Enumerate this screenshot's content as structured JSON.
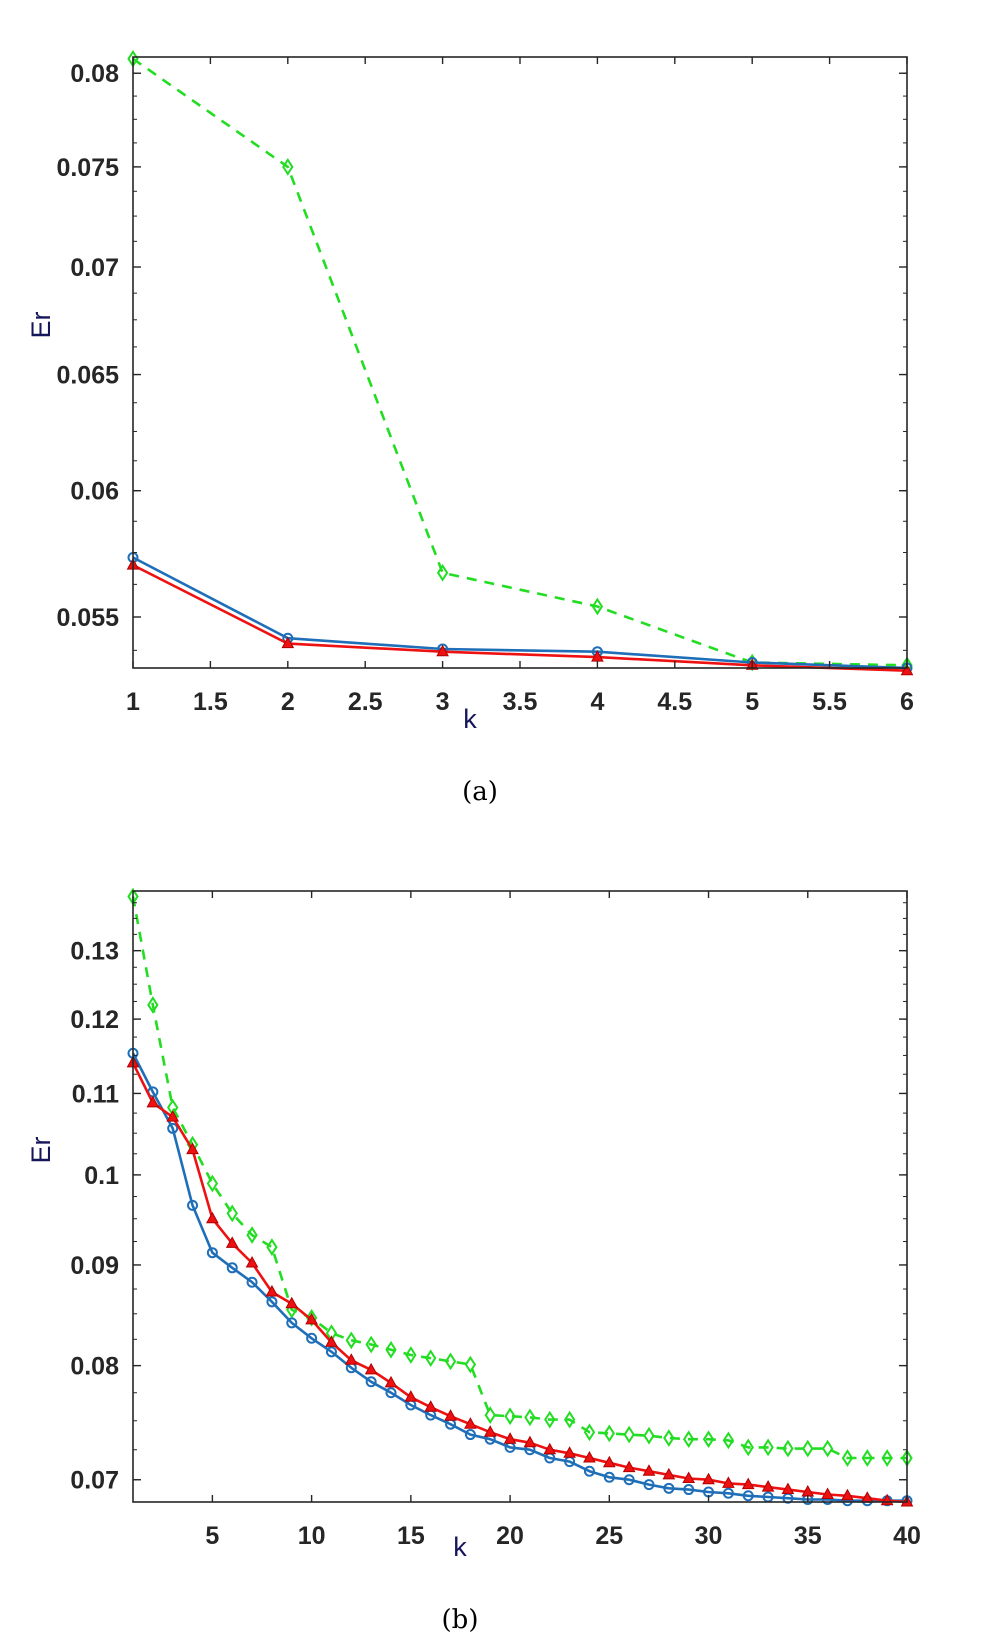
{
  "figure": {
    "panels": [
      {
        "caption": "(a)",
        "xlabel": "k",
        "ylabel": "Er"
      },
      {
        "caption": "(b)",
        "xlabel": "k",
        "ylabel": "Er"
      }
    ]
  },
  "chart_data": [
    {
      "type": "line",
      "title": "",
      "caption": "(a)",
      "xlabel": "k",
      "ylabel": "Er",
      "yscale": "log",
      "xlim": [
        1,
        6
      ],
      "ylim": [
        0.0531,
        0.0809
      ],
      "xticks": [
        1,
        1.5,
        2,
        2.5,
        3,
        3.5,
        4,
        4.5,
        5,
        5.5,
        6
      ],
      "xtick_labels": [
        "1",
        "1.5",
        "2",
        "2.5",
        "3",
        "3.5",
        "4",
        "4.5",
        "5",
        "5.5",
        "6"
      ],
      "yticks": [
        0.055,
        0.06,
        0.065,
        0.07,
        0.075,
        0.08
      ],
      "ytick_labels": [
        "0.055",
        "0.06",
        "0.065",
        "0.07",
        "0.075",
        "0.08"
      ],
      "grid": false,
      "legend": null,
      "x": [
        1,
        2,
        3,
        4,
        5,
        6
      ],
      "series": [
        {
          "name": "green-dashed-diamond",
          "color": "#22dd22",
          "line": "dashed",
          "marker": "diamond",
          "values": [
            0.0808,
            0.075,
            0.0567,
            0.0554,
            0.0533,
            0.0532
          ]
        },
        {
          "name": "blue-solid-circle",
          "color": "#1f6fb8",
          "line": "solid",
          "marker": "circle",
          "values": [
            0.0573,
            0.0542,
            0.0538,
            0.0537,
            0.0533,
            0.0531
          ]
        },
        {
          "name": "red-solid-triangle",
          "color": "#ee1111",
          "line": "solid",
          "marker": "triangle",
          "values": [
            0.057,
            0.054,
            0.0537,
            0.0535,
            0.0532,
            0.053
          ]
        }
      ]
    },
    {
      "type": "line",
      "title": "",
      "caption": "(b)",
      "xlabel": "k",
      "ylabel": "Er",
      "yscale": "log",
      "xlim": [
        1,
        40
      ],
      "ylim": [
        0.0682,
        0.1394
      ],
      "xticks": [
        5,
        10,
        15,
        20,
        25,
        30,
        35,
        40
      ],
      "xtick_labels": [
        "5",
        "10",
        "15",
        "20",
        "25",
        "30",
        "35",
        "40"
      ],
      "yticks": [
        0.07,
        0.08,
        0.09,
        0.1,
        0.11,
        0.12,
        0.13
      ],
      "ytick_labels": [
        "0.07",
        "0.08",
        "0.09",
        "0.1",
        "0.11",
        "0.12",
        "0.13"
      ],
      "grid": false,
      "legend": null,
      "x": [
        1,
        2,
        3,
        4,
        5,
        6,
        7,
        8,
        9,
        10,
        11,
        12,
        13,
        14,
        15,
        16,
        17,
        18,
        19,
        20,
        21,
        22,
        23,
        24,
        25,
        26,
        27,
        28,
        29,
        30,
        31,
        32,
        33,
        34,
        35,
        36,
        37,
        38,
        39,
        40
      ],
      "series": [
        {
          "name": "green-dashed-diamond",
          "color": "#22dd22",
          "line": "dashed",
          "marker": "diamond",
          "values": [
            0.1385,
            0.122,
            0.1082,
            0.1036,
            0.099,
            0.0956,
            0.0932,
            0.0919,
            0.0854,
            0.0846,
            0.0831,
            0.0824,
            0.082,
            0.0815,
            0.081,
            0.0807,
            0.0804,
            0.0801,
            0.0755,
            0.0754,
            0.0753,
            0.0751,
            0.0751,
            0.074,
            0.0739,
            0.0738,
            0.0737,
            0.0735,
            0.0734,
            0.0734,
            0.0733,
            0.0727,
            0.0727,
            0.0726,
            0.0726,
            0.0726,
            0.0718,
            0.0718,
            0.0718,
            0.0718
          ]
        },
        {
          "name": "blue-solid-circle",
          "color": "#1f6fb8",
          "line": "solid",
          "marker": "circle",
          "values": [
            0.1153,
            0.1102,
            0.1056,
            0.0965,
            0.0913,
            0.0897,
            0.0882,
            0.0862,
            0.0841,
            0.0826,
            0.0813,
            0.0798,
            0.0785,
            0.0775,
            0.0764,
            0.0755,
            0.0747,
            0.0738,
            0.0734,
            0.0727,
            0.0725,
            0.0718,
            0.0715,
            0.0707,
            0.0702,
            0.07,
            0.0696,
            0.0693,
            0.0692,
            0.069,
            0.0689,
            0.0687,
            0.0686,
            0.0685,
            0.0684,
            0.0684,
            0.0683,
            0.0683,
            0.0683,
            0.0683
          ]
        },
        {
          "name": "red-solid-triangle",
          "color": "#ee1111",
          "line": "solid",
          "marker": "triangle",
          "values": [
            0.114,
            0.1088,
            0.107,
            0.103,
            0.095,
            0.0923,
            0.0902,
            0.0872,
            0.086,
            0.0844,
            0.0822,
            0.0805,
            0.0796,
            0.0784,
            0.0771,
            0.0762,
            0.0754,
            0.0747,
            0.074,
            0.0734,
            0.0731,
            0.0725,
            0.0722,
            0.0718,
            0.0714,
            0.071,
            0.0707,
            0.0704,
            0.0701,
            0.07,
            0.0697,
            0.0696,
            0.0694,
            0.0692,
            0.069,
            0.0688,
            0.0687,
            0.0685,
            0.0683,
            0.0682
          ]
        }
      ]
    }
  ]
}
